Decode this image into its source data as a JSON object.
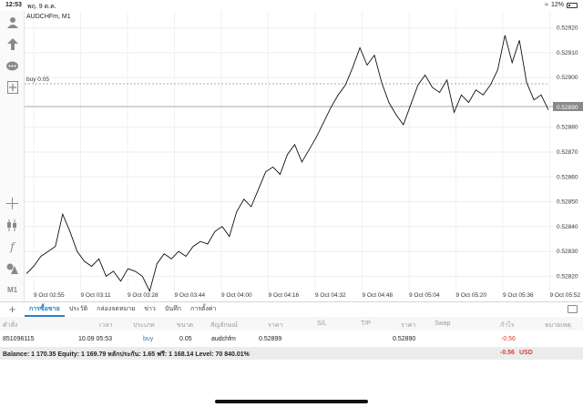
{
  "status_bar": {
    "time": "12:53",
    "date": "พฤ. 9 ต.ค.",
    "battery": "12%"
  },
  "sidebar": {
    "tools": [
      "user-icon",
      "arrow-up-icon",
      "chat-icon",
      "add-document-icon",
      "crosshair-icon",
      "candles-icon",
      "function-icon",
      "objects-icon"
    ],
    "timeframe": "M1"
  },
  "chart": {
    "symbol_label": "AUDCHFm, M1",
    "buy_line_label": "buy 0.05",
    "current_price": "0.52890",
    "price_ticks": [
      "0.52920",
      "0.52910",
      "0.52900",
      "0.52880",
      "0.52870",
      "0.52860",
      "0.52850",
      "0.52840",
      "0.52830",
      "0.52820"
    ],
    "time_ticks": [
      "9 Oct 02:55",
      "9 Oct 03:11",
      "9 Oct 03:28",
      "9 Oct 03:44",
      "9 Oct 04:00",
      "9 Oct 04:16",
      "9 Oct 04:32",
      "9 Oct 04:48",
      "9 Oct 05:04",
      "9 Oct 05:20",
      "9 Oct 05:36",
      "9 Oct 05:52"
    ]
  },
  "chart_data": {
    "type": "line",
    "title": "AUDCHFm, M1",
    "xlabel": "",
    "ylabel": "",
    "ylim": [
      0.52815,
      0.52925
    ],
    "series": [
      {
        "name": "",
        "values": [
          0.52821,
          0.52824,
          0.52828,
          0.5283,
          0.52832,
          0.52845,
          0.52838,
          0.5283,
          0.52826,
          0.52824,
          0.52827,
          0.5282,
          0.52822,
          0.52818,
          0.52823,
          0.52822,
          0.5282,
          0.52814,
          0.52825,
          0.52829,
          0.52827,
          0.5283,
          0.52828,
          0.52832,
          0.52834,
          0.52833,
          0.52838,
          0.5284,
          0.52836,
          0.52846,
          0.52851,
          0.52848,
          0.52855,
          0.52862,
          0.52864,
          0.52861,
          0.52869,
          0.52873,
          0.52866,
          0.52871,
          0.52876,
          0.52882,
          0.52888,
          0.52893,
          0.52897,
          0.52904,
          0.52912,
          0.52905,
          0.52909,
          0.52898,
          0.5289,
          0.52885,
          0.52881,
          0.52889,
          0.52897,
          0.52901,
          0.52896,
          0.52894,
          0.52899,
          0.52886,
          0.52893,
          0.5289,
          0.52895,
          0.52893,
          0.52897,
          0.52903,
          0.52917,
          0.52906,
          0.52915,
          0.52898,
          0.52891,
          0.52893,
          0.52887
        ]
      }
    ]
  },
  "tabs": [
    "การซื้อขาย",
    "ประวัติ",
    "กล่องจดหมาย",
    "ข่าว",
    "บันทึก",
    "การตั้งค่า"
  ],
  "table": {
    "headers": [
      "คำสั่ง",
      "เวลา",
      "ประเภท",
      "ขนาด",
      "สัญลักษณ์",
      "ราคา",
      "S/L",
      "T/P",
      "ราคา",
      "Swap",
      "กำไร",
      "หมายเหตุ"
    ],
    "row": [
      "851096115",
      "10.09 05:53",
      "buy",
      "0.05",
      "audchfm",
      "0.52899",
      "",
      "",
      "0.52890",
      "",
      "-0.56",
      ""
    ]
  },
  "balance": {
    "text": "Balance: 1 170.35 Equity: 1 169.79 หลักประกัน: 1.65 ฟรี: 1 168.14 Level: 70 840.01%",
    "profit": "-0.56",
    "currency": "USD"
  }
}
